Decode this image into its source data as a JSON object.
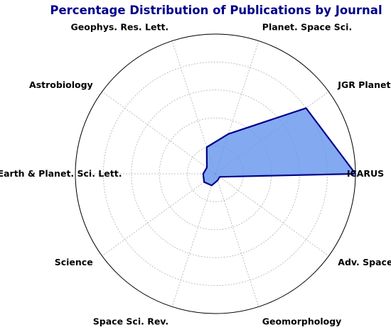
{
  "chart_data": {
    "type": "radar",
    "title": "Percentage Distribution of Publications by Journal",
    "categories": [
      "ICARUS",
      "JGR Planets",
      "Planet. Space Sci.",
      "Geophys. Res. Lett.",
      "Astrobiology",
      "Earth & Planet. Sci. Lett.",
      "Science",
      "Space Sci. Rev.",
      "Geomorphology",
      "Adv. Space Res."
    ],
    "series": [
      {
        "values": [
          40.0,
          32.0,
          12.0,
          8.0,
          3.0,
          3.5,
          4.0,
          3.5,
          2.0,
          1.5
        ]
      }
    ],
    "rlim": [
      0,
      40
    ],
    "grid": true,
    "colors": {
      "title": "#00008b",
      "fill": "#6495ed",
      "line": "#00008b"
    }
  }
}
